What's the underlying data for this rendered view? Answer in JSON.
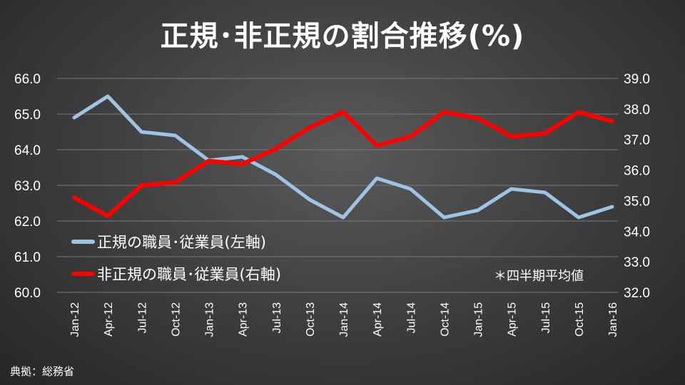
{
  "chart_data": {
    "type": "line",
    "title": "正規･非正規の割合推移(%)",
    "categories": [
      "Jan-12",
      "Apr-12",
      "Jul-12",
      "Oct-12",
      "Jan-13",
      "Apr-13",
      "Jul-13",
      "Oct-13",
      "Jan-14",
      "Apr-14",
      "Jul-14",
      "Oct-14",
      "Jan-15",
      "Apr-15",
      "Jul-15",
      "Oct-15",
      "Jan-16"
    ],
    "series": [
      {
        "name": "正規の職員･従業員(左軸)",
        "axis": "left",
        "color": "#9dc3e6",
        "values": [
          64.9,
          65.5,
          64.5,
          64.4,
          63.7,
          63.8,
          63.3,
          62.6,
          62.1,
          63.2,
          62.9,
          62.1,
          62.3,
          62.9,
          62.8,
          62.1,
          62.4
        ]
      },
      {
        "name": "非正規の職員･従業員(右軸)",
        "axis": "right",
        "color": "#ff0000",
        "values": [
          35.1,
          34.5,
          35.5,
          35.6,
          36.3,
          36.2,
          36.7,
          37.4,
          37.9,
          36.8,
          37.1,
          37.9,
          37.7,
          37.1,
          37.2,
          37.9,
          37.6
        ]
      }
    ],
    "y_left": {
      "min": 60.0,
      "max": 66.0,
      "ticks": [
        "60.0",
        "61.0",
        "62.0",
        "63.0",
        "64.0",
        "65.0",
        "66.0"
      ]
    },
    "y_right": {
      "min": 32.0,
      "max": 39.0,
      "ticks": [
        "32.0",
        "33.0",
        "34.0",
        "35.0",
        "36.0",
        "37.0",
        "38.0",
        "39.0"
      ]
    },
    "grid": true,
    "legend_position": "lower-left",
    "annotation": "＊四半期平均値",
    "source": "典拠：総務省"
  }
}
